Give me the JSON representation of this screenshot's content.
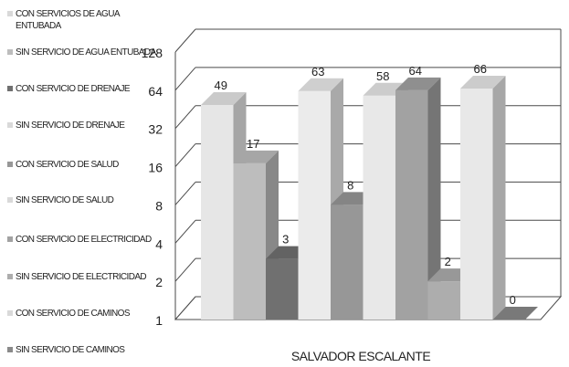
{
  "chart_data": {
    "type": "bar",
    "categories": [
      "SALVADOR ESCALANTE"
    ],
    "xlabel": "SALVADOR ESCALANTE",
    "yscale": "log2",
    "ylim": [
      1,
      128
    ],
    "yticks": [
      "1",
      "2",
      "4",
      "8",
      "16",
      "32",
      "64",
      "128"
    ],
    "grid": true,
    "legend_position": "left",
    "series": [
      {
        "name": "CON SERVICIOS DE AGUA ENTUBADA",
        "values": [
          49
        ],
        "color": "#e6e6e6"
      },
      {
        "name": "SIN SERVICIO DE AGUA ENTUBADA",
        "values": [
          17
        ],
        "color": "#bdbdbd"
      },
      {
        "name": "CON SERVICIO DE DRENAJE",
        "values": [
          3
        ],
        "color": "#707070"
      },
      {
        "name": "SIN SERVICIO DE DRENAJE",
        "values": [
          63
        ],
        "color": "#ebebeb"
      },
      {
        "name": "CON SERVICIO DE SALUD",
        "values": [
          8
        ],
        "color": "#979797"
      },
      {
        "name": "SIN SERVICIO DE SALUD",
        "values": [
          58
        ],
        "color": "#e8e8e8"
      },
      {
        "name": "CON SERVICIO DE ELECTRICIDAD",
        "values": [
          64
        ],
        "color": "#a2a2a2"
      },
      {
        "name": "SIN SERVICIO DE ELECTRICIDAD",
        "values": [
          2
        ],
        "color": "#adadad"
      },
      {
        "name": "CON SERVICIO DE CAMINOS",
        "values": [
          66
        ],
        "color": "#e8e8e8"
      },
      {
        "name": "SIN SERVICIO DE CAMINOS",
        "values": [
          0
        ],
        "color": "#8a8a8a"
      }
    ]
  }
}
